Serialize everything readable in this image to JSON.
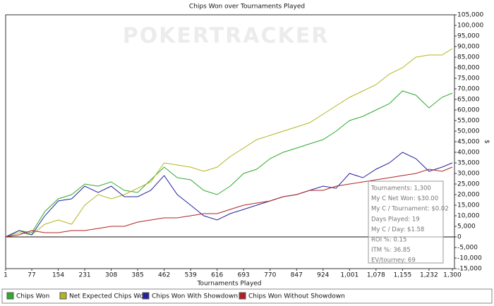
{
  "chart_data": {
    "type": "line",
    "title": "Chips Won over Tournaments Played",
    "xlabel": "Tournaments Played",
    "ylabel": "$",
    "watermark": "POKERTRACKER",
    "x": [
      1,
      40,
      77,
      115,
      154,
      193,
      231,
      270,
      308,
      346,
      385,
      423,
      462,
      500,
      539,
      577,
      616,
      654,
      693,
      731,
      770,
      808,
      847,
      885,
      924,
      962,
      1001,
      1040,
      1078,
      1117,
      1155,
      1194,
      1232,
      1270,
      1300
    ],
    "series": [
      {
        "name": "Chips Won",
        "color": "#2eaa2e",
        "values": [
          0,
          3000,
          2000,
          12000,
          18000,
          20000,
          25000,
          24000,
          26000,
          22000,
          21000,
          27000,
          33000,
          28000,
          27000,
          22000,
          20000,
          24000,
          30000,
          32000,
          37000,
          40000,
          42000,
          44000,
          46000,
          50000,
          55000,
          57000,
          60000,
          63000,
          69000,
          67000,
          61000,
          66000,
          68000
        ]
      },
      {
        "name": "Net Expected Chips Won",
        "color": "#b4b41e",
        "values": [
          0,
          2000,
          1000,
          6000,
          8000,
          6000,
          15000,
          20000,
          18000,
          20000,
          23000,
          26000,
          35000,
          34000,
          33000,
          31000,
          33000,
          38000,
          42000,
          46000,
          48000,
          50000,
          52000,
          54000,
          58000,
          62000,
          66000,
          69000,
          72000,
          77000,
          80000,
          85000,
          86000,
          86000,
          89000
        ]
      },
      {
        "name": "Chips Won With Showdown",
        "color": "#2222a0",
        "values": [
          0,
          3000,
          1000,
          10000,
          17000,
          18000,
          24000,
          21000,
          24000,
          19000,
          19000,
          22000,
          29000,
          20000,
          15000,
          10000,
          8000,
          11000,
          13000,
          15000,
          17000,
          19000,
          20000,
          22000,
          24000,
          23000,
          30000,
          28000,
          32000,
          35000,
          40000,
          37000,
          31000,
          33000,
          35000
        ]
      },
      {
        "name": "Chips Won Without Showdown",
        "color": "#b02222",
        "values": [
          0,
          1000,
          3000,
          2000,
          2000,
          3000,
          3000,
          4000,
          5000,
          5000,
          7000,
          8000,
          9000,
          9000,
          10000,
          11000,
          11000,
          13000,
          15000,
          16000,
          17000,
          19000,
          20000,
          22000,
          22000,
          24000,
          25000,
          26000,
          27000,
          28000,
          29000,
          30000,
          32000,
          31000,
          33000
        ]
      }
    ],
    "xlim": [
      1,
      1300
    ],
    "xticks": [
      1,
      77,
      154,
      231,
      308,
      385,
      462,
      539,
      616,
      693,
      770,
      847,
      924,
      {
        "value": 1001,
        "label": "1,001"
      },
      {
        "value": 1078,
        "label": "1,078"
      },
      {
        "value": 1155,
        "label": "1,155"
      },
      {
        "value": 1232,
        "label": "1,232"
      },
      {
        "value": 1300,
        "label": "1,300"
      }
    ],
    "ylim": [
      -15000,
      105000
    ],
    "yticks": [
      {
        "value": -15000,
        "label": "-15,000"
      },
      {
        "value": -10000,
        "label": "-10,000"
      },
      {
        "value": -5000,
        "label": "-5,000"
      },
      0,
      {
        "value": 5000,
        "label": "5,000"
      },
      {
        "value": 10000,
        "label": "10,000"
      },
      {
        "value": 15000,
        "label": "15,000"
      },
      {
        "value": 20000,
        "label": "20,000"
      },
      {
        "value": 25000,
        "label": "25,000"
      },
      {
        "value": 30000,
        "label": "30,000"
      },
      {
        "value": 35000,
        "label": "35,000"
      },
      {
        "value": 40000,
        "label": "40,000"
      },
      {
        "value": 45000,
        "label": "45,000"
      },
      {
        "value": 50000,
        "label": "50,000"
      },
      {
        "value": 55000,
        "label": "55,000"
      },
      {
        "value": 60000,
        "label": "60,000"
      },
      {
        "value": 65000,
        "label": "65,000"
      },
      {
        "value": 70000,
        "label": "70,000"
      },
      {
        "value": 75000,
        "label": "75,000"
      },
      {
        "value": 80000,
        "label": "80,000"
      },
      {
        "value": 85000,
        "label": "85,000"
      },
      {
        "value": 90000,
        "label": "90,000"
      },
      {
        "value": 95000,
        "label": "95,000"
      },
      {
        "value": 100000,
        "label": "100,000"
      },
      {
        "value": 105000,
        "label": "105,000"
      }
    ],
    "grid": false,
    "stats": [
      "Tournaments: 1,300",
      "My C Net Won: $30.00",
      "My C / Tournament: $0.02",
      "Days Played: 19",
      "My C / Day: $1.58",
      "ROI %: 0.15",
      "ITM %: 36.85",
      "EV/tourney: 69"
    ]
  }
}
